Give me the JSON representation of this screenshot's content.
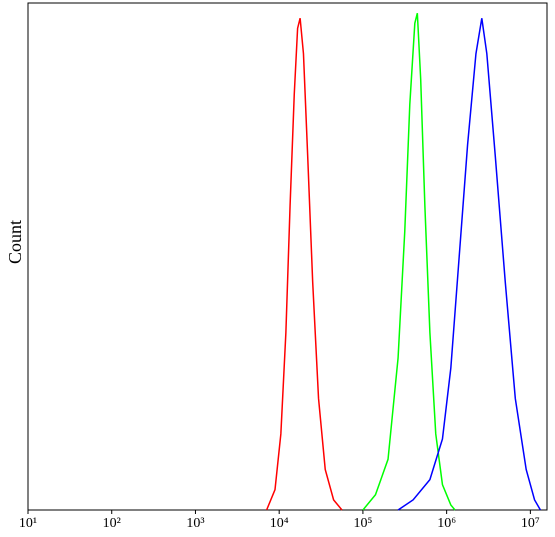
{
  "chart_data": {
    "type": "line",
    "y_label": "Count",
    "x_log": true,
    "xlim": [
      10,
      15800000
    ],
    "ylim": [
      0,
      100
    ],
    "xticks": [
      {
        "value": 10,
        "label": "10¹"
      },
      {
        "value": 100,
        "label": "10²"
      },
      {
        "value": 1000,
        "label": "10³"
      },
      {
        "value": 10000,
        "label": "10⁴"
      },
      {
        "value": 100000,
        "label": "10⁵"
      },
      {
        "value": 1000000,
        "label": "10⁶"
      },
      {
        "value": 10000000,
        "label": "10⁷"
      }
    ],
    "series": [
      {
        "color": "#ff0000",
        "x": [
          7079,
          8913,
          10471,
          12023,
          13490,
          15136,
          16596,
          17783,
          19498,
          21878,
          25119,
          29512,
          35481,
          44668,
          56234
        ],
        "values": [
          0,
          4,
          15,
          35,
          60,
          82,
          95,
          97,
          90,
          70,
          45,
          22,
          8,
          2,
          0
        ]
      },
      {
        "color": "#00ff00",
        "x": [
          100000,
          141254,
          199526,
          263027,
          316228,
          363078,
          416869,
          446684,
          489779,
          549541,
          630957,
          741310,
          891251,
          1122018,
          1258925
        ],
        "values": [
          0,
          3,
          10,
          30,
          55,
          80,
          96,
          98,
          85,
          60,
          35,
          15,
          5,
          1,
          0
        ]
      },
      {
        "color": "#0000ff",
        "x": [
          263027,
          398107,
          630957,
          891251,
          1122018,
          1412538,
          1778279,
          2238721,
          2630268,
          3019952,
          3801894,
          5011872,
          6606934,
          8912509,
          11220185,
          13182567
        ],
        "values": [
          0,
          2,
          6,
          14,
          28,
          50,
          72,
          90,
          97,
          90,
          70,
          45,
          22,
          8,
          2,
          0
        ]
      }
    ]
  }
}
